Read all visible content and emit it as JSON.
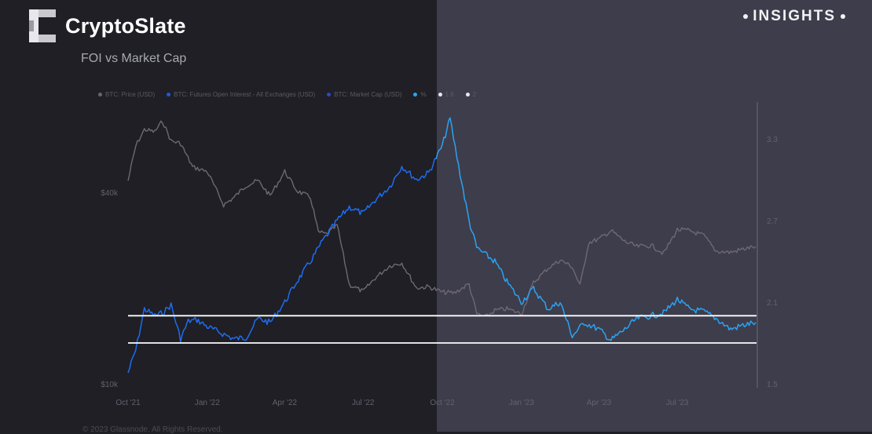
{
  "brand": {
    "name": "CryptoSlate",
    "tag": "INSIGHTS"
  },
  "subtitle": "FOI vs Market Cap",
  "footer": "© 2023 Glassnode. All Rights Reserved.",
  "colors": {
    "price": "#6f6873",
    "foi": "#1e6cf0",
    "foi_highlight": "#2aa3f2",
    "ref": "#ffffff"
  },
  "legend": [
    {
      "name": "BTC: Price (USD)",
      "color": "#666670"
    },
    {
      "name": "BTC: Futures Open Interest - All Exchanges (USD)",
      "color": "#1e58e0"
    },
    {
      "name": "BTC: Market Cap (USD)",
      "color": "#2a48c8"
    },
    {
      "name": "%",
      "color": "#22a8f0"
    },
    {
      "name": "1.8",
      "color": "#e8e8ec"
    },
    {
      "name": "2",
      "color": "#e8e8ec"
    }
  ],
  "chart_data": {
    "type": "line",
    "x_ticks": [
      "Oct '21",
      "Jan '22",
      "Apr '22",
      "Jul '22",
      "Oct '22",
      "Jan '23",
      "Apr '23",
      "Jul '23"
    ],
    "y_left_ticks": [
      "$40k",
      "$10k"
    ],
    "y_left_scale": "log",
    "y_right_ticks": [
      "3.3",
      "2.7",
      "2.1",
      "1.5"
    ],
    "y_right_range": [
      1.5,
      3.3
    ],
    "series": [
      {
        "name": "BTC: Price (USD)",
        "axis": "left",
        "x": [
          "2021-10-01",
          "2021-10-10",
          "2021-10-20",
          "2021-11-01",
          "2021-11-10",
          "2021-11-20",
          "2021-12-01",
          "2021-12-15",
          "2022-01-01",
          "2022-01-20",
          "2022-02-01",
          "2022-02-15",
          "2022-03-01",
          "2022-03-15",
          "2022-04-01",
          "2022-04-15",
          "2022-05-01",
          "2022-05-10",
          "2022-05-20",
          "2022-06-01",
          "2022-06-15",
          "2022-07-01",
          "2022-07-15",
          "2022-08-01",
          "2022-08-15",
          "2022-09-01",
          "2022-09-15",
          "2022-10-01",
          "2022-10-15",
          "2022-11-01",
          "2022-11-10",
          "2022-11-20",
          "2022-12-01",
          "2022-12-15",
          "2023-01-01",
          "2023-01-15",
          "2023-02-01",
          "2023-02-15",
          "2023-03-01",
          "2023-03-10",
          "2023-03-20",
          "2023-04-01",
          "2023-04-15",
          "2023-05-01",
          "2023-05-15",
          "2023-06-01",
          "2023-06-15",
          "2023-07-01",
          "2023-07-15",
          "2023-08-01",
          "2023-08-15",
          "2023-09-01",
          "2023-09-15",
          "2023-09-30"
        ],
        "y": [
          43500,
          56000,
          63000,
          62000,
          67000,
          58000,
          57000,
          48000,
          46500,
          36500,
          38500,
          42000,
          43500,
          39000,
          46500,
          40500,
          38500,
          30000,
          29500,
          31500,
          20500,
          19500,
          21500,
          23500,
          24000,
          20000,
          20200,
          19400,
          19300,
          20600,
          16600,
          16200,
          17000,
          17200,
          16600,
          20800,
          23100,
          24500,
          23300,
          20300,
          27800,
          28500,
          30300,
          28000,
          27000,
          27200,
          25700,
          30500,
          30300,
          29200,
          26100,
          25900,
          26500,
          27000
        ]
      },
      {
        "name": "%",
        "axis": "right",
        "x": [
          "2021-10-01",
          "2021-10-10",
          "2021-10-20",
          "2021-11-01",
          "2021-11-10",
          "2021-11-20",
          "2021-12-01",
          "2021-12-10",
          "2021-12-20",
          "2022-01-01",
          "2022-01-15",
          "2022-02-01",
          "2022-02-15",
          "2022-03-01",
          "2022-03-15",
          "2022-04-01",
          "2022-04-15",
          "2022-05-01",
          "2022-05-15",
          "2022-06-01",
          "2022-06-15",
          "2022-07-01",
          "2022-07-15",
          "2022-08-01",
          "2022-08-15",
          "2022-09-01",
          "2022-09-15",
          "2022-10-01",
          "2022-10-10",
          "2022-10-20",
          "2022-11-01",
          "2022-11-10",
          "2022-11-20",
          "2022-12-01",
          "2022-12-15",
          "2023-01-01",
          "2023-01-15",
          "2023-02-01",
          "2023-02-15",
          "2023-03-01",
          "2023-03-15",
          "2023-04-01",
          "2023-04-15",
          "2023-05-01",
          "2023-05-15",
          "2023-06-01",
          "2023-06-15",
          "2023-07-01",
          "2023-07-15",
          "2023-08-01",
          "2023-08-15",
          "2023-09-01",
          "2023-09-15",
          "2023-09-30"
        ],
        "y": [
          1.58,
          1.75,
          2.05,
          2.0,
          2.02,
          2.08,
          1.83,
          1.96,
          1.97,
          1.92,
          1.88,
          1.83,
          1.84,
          1.98,
          1.95,
          2.1,
          2.25,
          2.4,
          2.55,
          2.7,
          2.8,
          2.75,
          2.85,
          2.95,
          3.1,
          3.0,
          3.05,
          3.25,
          3.45,
          3.1,
          2.7,
          2.5,
          2.45,
          2.4,
          2.25,
          2.1,
          2.2,
          2.05,
          2.1,
          1.85,
          1.95,
          1.9,
          1.82,
          1.9,
          1.98,
          2.0,
          2.02,
          2.12,
          2.05,
          2.03,
          1.98,
          1.9,
          1.93,
          1.95
        ]
      },
      {
        "name": "1.8",
        "axis": "right",
        "constant": 1.8
      },
      {
        "name": "2",
        "axis": "right",
        "constant": 2.0
      }
    ]
  }
}
